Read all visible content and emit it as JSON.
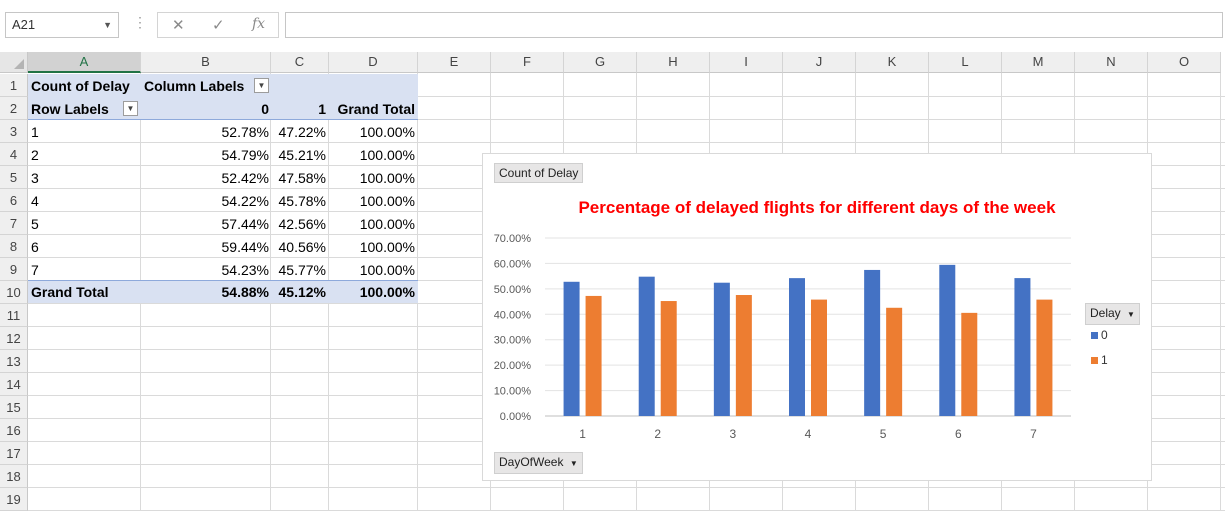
{
  "formula_bar": {
    "name_box": "A21",
    "formula": "",
    "cancel_glyph": "✕",
    "enter_glyph": "✓",
    "fx_glyph": "fx"
  },
  "columns": [
    "A",
    "B",
    "C",
    "D",
    "E",
    "F",
    "G",
    "H",
    "I",
    "J",
    "K",
    "L",
    "M",
    "N",
    "O"
  ],
  "rows": [
    "1",
    "2",
    "3",
    "4",
    "5",
    "6",
    "7",
    "8",
    "9",
    "10",
    "11",
    "12",
    "13",
    "14",
    "15",
    "16",
    "17",
    "18",
    "19"
  ],
  "selected_cell": "A21",
  "pivot": {
    "values_label": "Count of Delay",
    "column_labels": "Column Labels",
    "row_labels": "Row Labels",
    "col_keys": [
      "0",
      "1",
      "Grand Total"
    ],
    "rows": [
      {
        "label": "1",
        "v0": "52.78%",
        "v1": "47.22%",
        "total": "100.00%"
      },
      {
        "label": "2",
        "v0": "54.79%",
        "v1": "45.21%",
        "total": "100.00%"
      },
      {
        "label": "3",
        "v0": "52.42%",
        "v1": "47.58%",
        "total": "100.00%"
      },
      {
        "label": "4",
        "v0": "54.22%",
        "v1": "45.78%",
        "total": "100.00%"
      },
      {
        "label": "5",
        "v0": "57.44%",
        "v1": "42.56%",
        "total": "100.00%"
      },
      {
        "label": "6",
        "v0": "59.44%",
        "v1": "40.56%",
        "total": "100.00%"
      },
      {
        "label": "7",
        "v0": "54.23%",
        "v1": "45.77%",
        "total": "100.00%"
      }
    ],
    "grand_total": {
      "label": "Grand Total",
      "v0": "54.88%",
      "v1": "45.12%",
      "total": "100.00%"
    }
  },
  "chart_ui": {
    "values_button": "Count of Delay",
    "axis_button": "DayOfWeek",
    "legend_button": "Delay"
  },
  "colors": {
    "series_0": "#4472c4",
    "series_1": "#ed7d31",
    "title": "#ff0000",
    "pivot_header": "#d9e1f2",
    "selected_header_accent": "#217346"
  },
  "chart_data": {
    "type": "bar",
    "title": "Percentage of delayed flights for different days of the week",
    "xlabel": "",
    "ylabel": "",
    "categories": [
      "1",
      "2",
      "3",
      "4",
      "5",
      "6",
      "7"
    ],
    "series": [
      {
        "name": "0",
        "values": [
          52.78,
          54.79,
          52.42,
          54.22,
          57.44,
          59.44,
          54.23
        ]
      },
      {
        "name": "1",
        "values": [
          47.22,
          45.21,
          47.58,
          45.78,
          42.56,
          40.56,
          45.77
        ]
      }
    ],
    "ylim": [
      0,
      70
    ],
    "yticks": [
      "0.00%",
      "10.00%",
      "20.00%",
      "30.00%",
      "40.00%",
      "50.00%",
      "60.00%",
      "70.00%"
    ],
    "grid": true,
    "legend_position": "right"
  }
}
